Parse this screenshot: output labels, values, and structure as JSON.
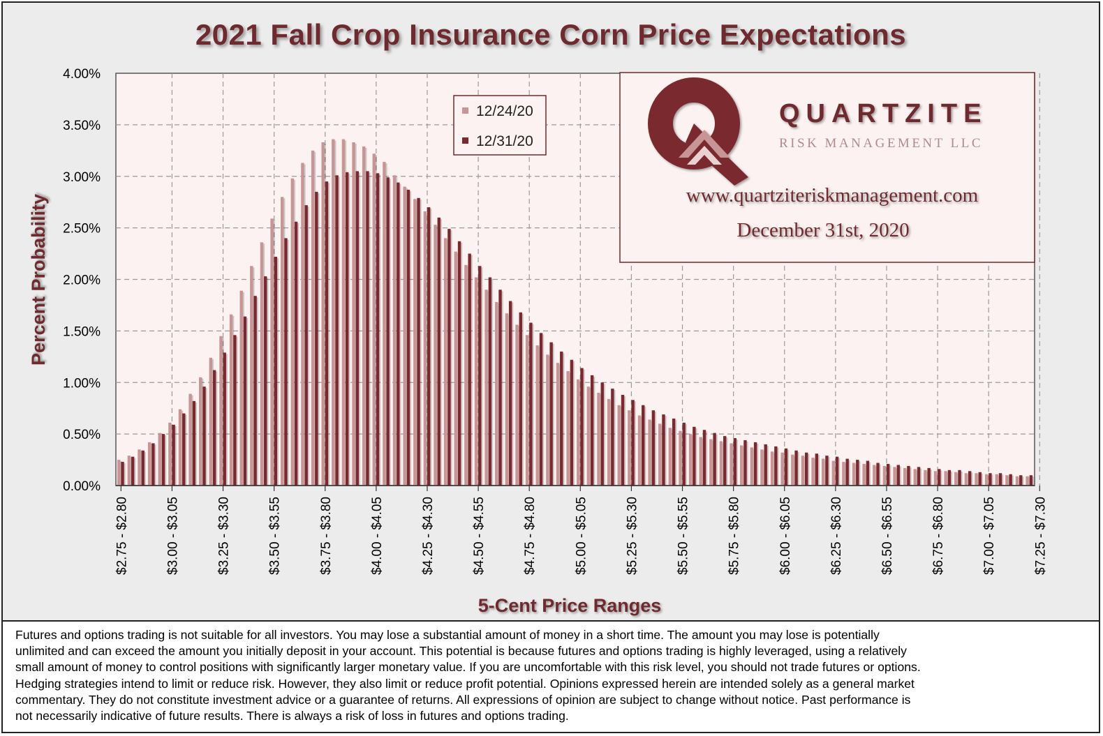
{
  "title": "2021 Fall Crop Insurance Corn Price Expectations",
  "logo": {
    "name": "QUARTZITE",
    "subtitle": "RISK MANAGEMENT LLC",
    "url": "www.quartziteriskmanagement.com",
    "date": "December 31st, 2020"
  },
  "colors": {
    "series_light": "#c79596",
    "series_dark": "#7a2a2f",
    "plot_bg": "#fbf2f1",
    "title": "#6e2a2e"
  },
  "chart_data": {
    "type": "bar",
    "xlabel": "5-Cent Price Ranges",
    "ylabel": "Percent Probability",
    "ylim": [
      0,
      4.0
    ],
    "y_unit": "%",
    "y_ticks": [
      "0.00%",
      "0.50%",
      "1.00%",
      "1.50%",
      "2.00%",
      "2.50%",
      "3.00%",
      "3.50%",
      "4.00%"
    ],
    "grid": true,
    "legend_position": "top-center",
    "x_tick_labels": [
      "$2.75 - $2.80",
      "$3.00 - $3.05",
      "$3.25 - $3.30",
      "$3.50 - $3.55",
      "$3.75 - $3.80",
      "$4.00 - $4.05",
      "$4.25 - $4.30",
      "$4.50 - $4.55",
      "$4.75 - $4.80",
      "$5.00 - $5.05",
      "$5.25 - $5.30",
      "$5.50 - $5.55",
      "$5.75 - $5.80",
      "$6.00 - $6.05",
      "$6.25 - $6.30",
      "$6.50 - $6.55",
      "$6.75 - $6.80",
      "$7.00 - $7.05",
      "$7.25 - $7.30"
    ],
    "series": [
      {
        "name": "12/24/20",
        "color": "#c79596",
        "values": [
          0.25,
          0.29,
          0.35,
          0.42,
          0.51,
          0.61,
          0.74,
          0.89,
          1.05,
          1.24,
          1.45,
          1.66,
          1.89,
          2.13,
          2.36,
          2.59,
          2.8,
          2.98,
          3.13,
          3.25,
          3.33,
          3.36,
          3.36,
          3.33,
          3.29,
          3.22,
          3.14,
          3.01,
          2.9,
          2.78,
          2.66,
          2.53,
          2.4,
          2.27,
          2.14,
          2.02,
          1.9,
          1.78,
          1.67,
          1.56,
          1.46,
          1.36,
          1.27,
          1.19,
          1.11,
          1.03,
          0.96,
          0.9,
          0.84,
          0.78,
          0.73,
          0.68,
          0.64,
          0.6,
          0.56,
          0.53,
          0.5,
          0.47,
          0.45,
          0.43,
          0.41,
          0.39,
          0.37,
          0.35,
          0.33,
          0.32,
          0.3,
          0.29,
          0.27,
          0.26,
          0.24,
          0.23,
          0.22,
          0.21,
          0.2,
          0.19,
          0.18,
          0.17,
          0.16,
          0.15,
          0.14,
          0.14,
          0.13,
          0.12,
          0.12,
          0.11,
          0.11,
          0.1,
          0.09,
          0.09
        ]
      },
      {
        "name": "12/31/20",
        "color": "#7a2a2f",
        "values": [
          0.23,
          0.28,
          0.34,
          0.41,
          0.5,
          0.59,
          0.7,
          0.82,
          0.96,
          1.12,
          1.29,
          1.46,
          1.64,
          1.84,
          2.03,
          2.22,
          2.4,
          2.56,
          2.72,
          2.85,
          2.95,
          3.01,
          3.04,
          3.05,
          3.05,
          3.03,
          2.99,
          2.94,
          2.87,
          2.79,
          2.7,
          2.6,
          2.49,
          2.37,
          2.25,
          2.13,
          2.02,
          1.9,
          1.79,
          1.68,
          1.58,
          1.48,
          1.39,
          1.3,
          1.22,
          1.14,
          1.07,
          1.0,
          0.94,
          0.88,
          0.83,
          0.78,
          0.73,
          0.69,
          0.65,
          0.61,
          0.57,
          0.54,
          0.51,
          0.48,
          0.46,
          0.44,
          0.42,
          0.4,
          0.38,
          0.36,
          0.34,
          0.32,
          0.31,
          0.29,
          0.28,
          0.26,
          0.25,
          0.24,
          0.22,
          0.21,
          0.2,
          0.19,
          0.18,
          0.17,
          0.16,
          0.15,
          0.15,
          0.14,
          0.13,
          0.12,
          0.12,
          0.11,
          0.1,
          0.1
        ]
      }
    ]
  },
  "disclaimer": {
    "lines": [
      "Futures and options trading is not suitable for all investors. You may lose a substantial amount of money in a short time. The amount you may lose is potentially",
      "unlimited and can exceed the amount you initially deposit in your account. This potential is because futures and options trading is highly leveraged, using a relatively",
      "small amount of money to control positions with significantly larger monetary value. If you are uncomfortable with this risk level, you should not trade futures or options.",
      "Hedging strategies intend to limit or reduce risk. However, they also limit or reduce profit potential. Opinions expressed herein are intended solely as a general market",
      "commentary. They do not constitute investment advice or a guarantee of returns. All expressions of opinion are subject to change without notice. Past performance is",
      "not necessarily indicative of future results. There is always a risk of loss in futures and options trading."
    ]
  }
}
